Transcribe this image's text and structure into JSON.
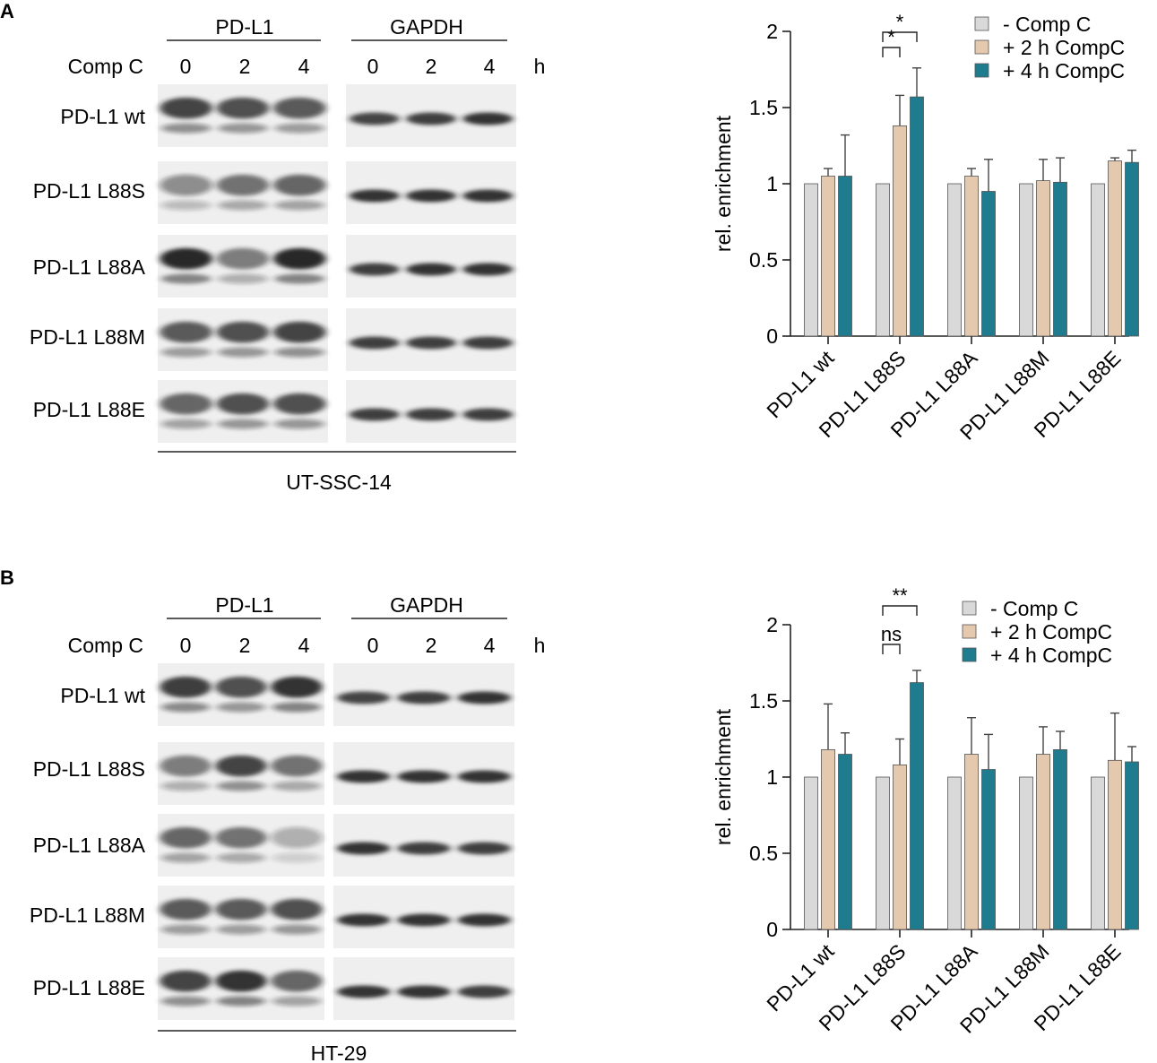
{
  "colors": {
    "comp_c_0": "#d9d9d9",
    "comp_c_2": "#e5c9ae",
    "comp_c_4": "#1f7c8e",
    "axis": "#222222",
    "blot_bg": "#efefef",
    "band": "#1c1c1c"
  },
  "panels": [
    {
      "letter": "A",
      "blot": {
        "protein_labels": [
          "PD-L1",
          "GAPDH"
        ],
        "time_label": "Comp C",
        "time_points": [
          "0",
          "2",
          "4"
        ],
        "time_unit": "h",
        "row_labels": [
          "PD-L1 wt",
          "PD-L1 L88S",
          "PD-L1 L88A",
          "PD-L1 L88M",
          "PD-L1 L88E"
        ],
        "cell_line": "UT-SSC-14",
        "pdl1_band_intensity": [
          [
            0.8,
            0.75,
            0.7
          ],
          [
            0.45,
            0.6,
            0.65
          ],
          [
            0.95,
            0.55,
            0.95
          ],
          [
            0.7,
            0.75,
            0.8
          ],
          [
            0.65,
            0.75,
            0.75
          ]
        ],
        "gapdh_band_intensity": [
          [
            0.8,
            0.85,
            0.9
          ],
          [
            0.9,
            0.9,
            0.9
          ],
          [
            0.85,
            0.9,
            0.9
          ],
          [
            0.85,
            0.85,
            0.85
          ],
          [
            0.85,
            0.85,
            0.85
          ]
        ]
      },
      "chart_data": {
        "type": "bar",
        "categories": [
          "PD-L1 wt",
          "PD-L1 L88S",
          "PD-L1 L88A",
          "PD-L1 L88M",
          "PD-L1 L88E"
        ],
        "series": [
          {
            "name": "- Comp C",
            "values": [
              1.0,
              1.0,
              1.0,
              1.0,
              1.0
            ],
            "errors": [
              0,
              0,
              0,
              0,
              0
            ]
          },
          {
            "name": "+ 2 h CompC",
            "values": [
              1.05,
              1.38,
              1.05,
              1.02,
              1.15
            ],
            "errors": [
              0.05,
              0.2,
              0.05,
              0.14,
              0.02
            ]
          },
          {
            "name": "+ 4 h CompC",
            "values": [
              1.05,
              1.57,
              0.95,
              1.01,
              1.14
            ],
            "errors": [
              0.27,
              0.19,
              0.21,
              0.16,
              0.08
            ]
          }
        ],
        "ylabel": "rel. enrichment",
        "ylim": [
          0,
          2
        ],
        "yticks": [
          "0",
          "0.5",
          "1",
          "1.5",
          "2"
        ],
        "legend_position": "top-right",
        "annotations": [
          {
            "category": "PD-L1 L88S",
            "from_series": 0,
            "to_series": 1,
            "label": "*"
          },
          {
            "category": "PD-L1 L88S",
            "from_series": 0,
            "to_series": 2,
            "label": "*"
          }
        ]
      }
    },
    {
      "letter": "B",
      "blot": {
        "protein_labels": [
          "PD-L1",
          "GAPDH"
        ],
        "time_label": "Comp C",
        "time_points": [
          "0",
          "2",
          "4"
        ],
        "time_unit": "h",
        "row_labels": [
          "PD-L1 wt",
          "PD-L1 L88S",
          "PD-L1 L88A",
          "PD-L1 L88M",
          "PD-L1 L88E"
        ],
        "cell_line": "HT-29",
        "pdl1_band_intensity": [
          [
            0.85,
            0.75,
            0.9
          ],
          [
            0.55,
            0.8,
            0.6
          ],
          [
            0.65,
            0.6,
            0.3
          ],
          [
            0.7,
            0.7,
            0.75
          ],
          [
            0.8,
            0.9,
            0.65
          ]
        ],
        "gapdh_band_intensity": [
          [
            0.8,
            0.85,
            0.9
          ],
          [
            0.9,
            0.9,
            0.9
          ],
          [
            0.9,
            0.85,
            0.85
          ],
          [
            0.9,
            0.9,
            0.9
          ],
          [
            0.9,
            0.9,
            0.85
          ]
        ]
      },
      "chart_data": {
        "type": "bar",
        "categories": [
          "PD-L1 wt",
          "PD-L1 L88S",
          "PD-L1 L88A",
          "PD-L1 L88M",
          "PD-L1 L88E"
        ],
        "series": [
          {
            "name": "- Comp C",
            "values": [
              1.0,
              1.0,
              1.0,
              1.0,
              1.0
            ],
            "errors": [
              0,
              0,
              0,
              0,
              0
            ]
          },
          {
            "name": "+ 2 h CompC",
            "values": [
              1.18,
              1.08,
              1.15,
              1.15,
              1.11
            ],
            "errors": [
              0.3,
              0.17,
              0.24,
              0.18,
              0.31
            ]
          },
          {
            "name": "+ 4 h CompC",
            "values": [
              1.15,
              1.62,
              1.05,
              1.18,
              1.1
            ],
            "errors": [
              0.14,
              0.08,
              0.23,
              0.12,
              0.1
            ]
          }
        ],
        "ylabel": "rel. enrichment",
        "ylim": [
          0,
          2
        ],
        "yticks": [
          "0",
          "0.5",
          "1",
          "1.5",
          "2"
        ],
        "legend_position": "top-right",
        "annotations": [
          {
            "category": "PD-L1 L88S",
            "from_series": 0,
            "to_series": 1,
            "label": "ns"
          },
          {
            "category": "PD-L1 L88S",
            "from_series": 0,
            "to_series": 2,
            "label": "**"
          }
        ]
      }
    }
  ]
}
